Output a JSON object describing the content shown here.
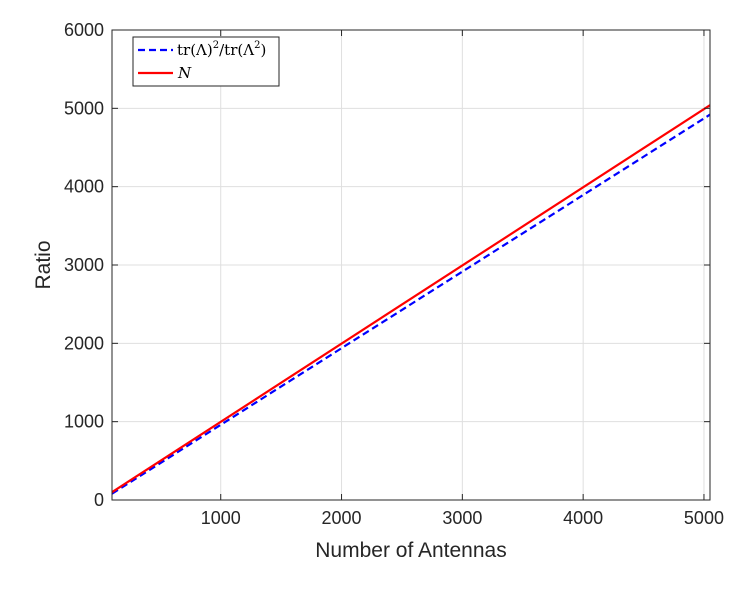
{
  "chart_data": {
    "type": "line",
    "title": "",
    "xlabel": "Number of Antennas",
    "ylabel": "Ratio",
    "xlim": [
      100,
      5050
    ],
    "ylim": [
      0,
      6000
    ],
    "x_ticks": [
      1000,
      2000,
      3000,
      4000,
      5000
    ],
    "y_ticks": [
      0,
      1000,
      2000,
      3000,
      4000,
      5000,
      6000
    ],
    "x_tick_labels": [
      "1000",
      "2000",
      "3000",
      "4000",
      "5000"
    ],
    "y_tick_labels": [
      "0",
      "1000",
      "2000",
      "3000",
      "4000",
      "5000",
      "6000"
    ],
    "grid": true,
    "legend_position": "top-left",
    "series": [
      {
        "name": "tr(Λ)²/tr(Λ²)",
        "legend_main": "tr(Λ)",
        "legend_sup": "2",
        "legend_mid": "/tr(Λ",
        "legend_sup2": "2",
        "legend_end": ")",
        "style": "dashed",
        "color": "#0000ff",
        "x": [
          100,
          5050
        ],
        "y": [
          80,
          4920
        ]
      },
      {
        "name": "N",
        "style": "solid",
        "color": "#ff0000",
        "x": [
          100,
          5050
        ],
        "y": [
          100,
          5040
        ]
      }
    ]
  }
}
